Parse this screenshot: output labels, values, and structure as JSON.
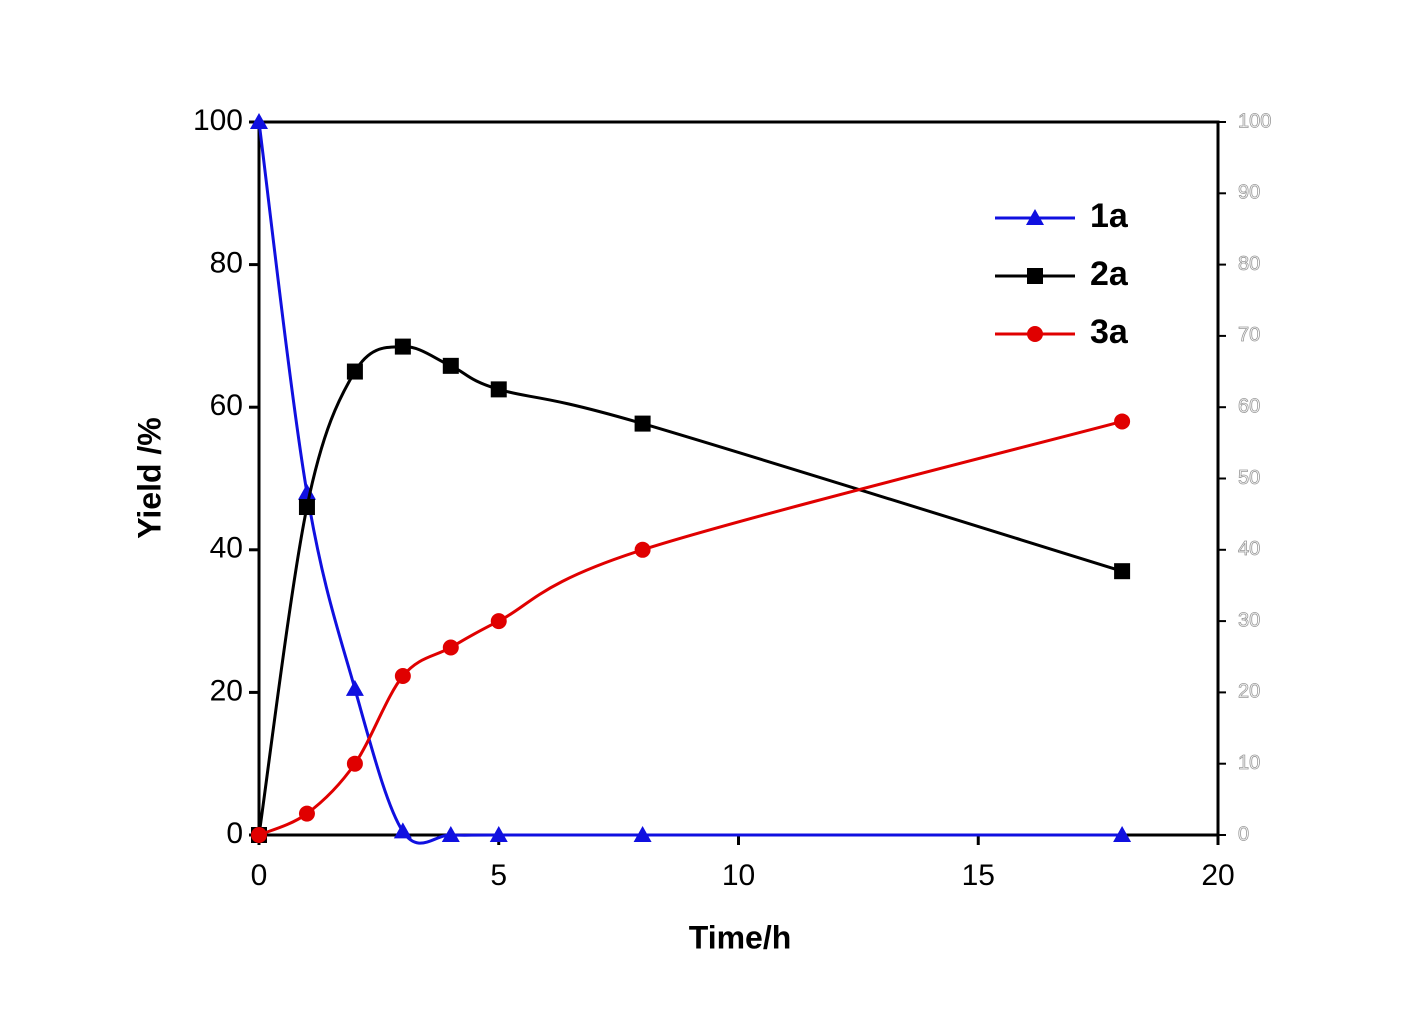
{
  "chart_data": {
    "type": "line",
    "x_label": "Time/h",
    "y_label": "Yield /%",
    "x": [
      0,
      1,
      2,
      3,
      4,
      5,
      8,
      18
    ],
    "series": [
      {
        "name": "1a",
        "color": "#1010e0",
        "marker": "triangle",
        "values": [
          100,
          48,
          20.5,
          0.5,
          0,
          0,
          0,
          0
        ]
      },
      {
        "name": "2a",
        "color": "#000000",
        "marker": "square",
        "values": [
          0,
          46,
          65,
          68.5,
          65.8,
          62.5,
          57.7,
          37
        ]
      },
      {
        "name": "3a",
        "color": "#e00000",
        "marker": "circle",
        "values": [
          0,
          3,
          10,
          22.3,
          26.3,
          30,
          40,
          58
        ]
      }
    ],
    "xlim": [
      0,
      20
    ],
    "xticks": [
      0,
      5,
      10,
      15,
      20
    ],
    "ylim": [
      0,
      100
    ],
    "yticks": [
      0,
      20,
      40,
      60,
      80,
      100
    ],
    "y2lim": [
      0,
      100
    ],
    "y2ticks": [
      0,
      10,
      20,
      30,
      40,
      50,
      60,
      70,
      80,
      90,
      100
    ],
    "smooth": true,
    "legend": "upper right"
  }
}
